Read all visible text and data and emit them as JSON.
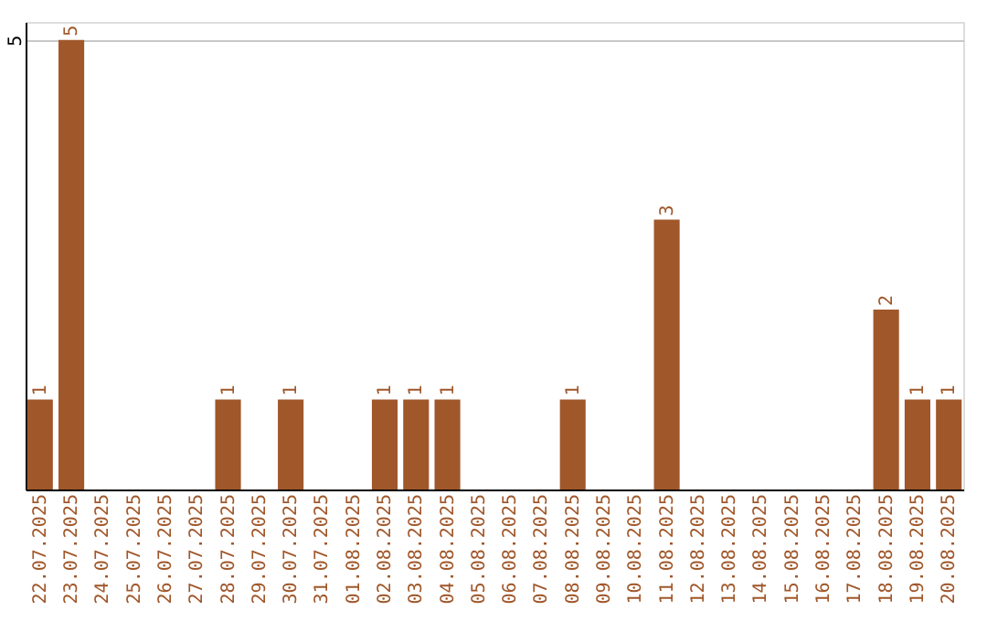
{
  "chart_data": {
    "type": "bar",
    "categories": [
      "22.07.2025",
      "23.07.2025",
      "24.07.2025",
      "25.07.2025",
      "26.07.2025",
      "27.07.2025",
      "28.07.2025",
      "29.07.2025",
      "30.07.2025",
      "31.07.2025",
      "01.08.2025",
      "02.08.2025",
      "03.08.2025",
      "04.08.2025",
      "05.08.2025",
      "06.08.2025",
      "07.08.2025",
      "08.08.2025",
      "09.08.2025",
      "10.08.2025",
      "11.08.2025",
      "12.08.2025",
      "13.08.2025",
      "14.08.2025",
      "15.08.2025",
      "16.08.2025",
      "17.08.2025",
      "18.08.2025",
      "19.08.2025",
      "20.08.2025"
    ],
    "values": [
      1,
      5,
      null,
      null,
      null,
      null,
      1,
      null,
      1,
      null,
      null,
      1,
      1,
      1,
      null,
      null,
      null,
      1,
      null,
      null,
      3,
      null,
      null,
      null,
      null,
      null,
      null,
      2,
      1,
      1
    ],
    "color": "#a0572a",
    "ylim": [
      0,
      5.2
    ],
    "yticks": [
      5
    ],
    "grid": "y",
    "data_labels": true
  }
}
